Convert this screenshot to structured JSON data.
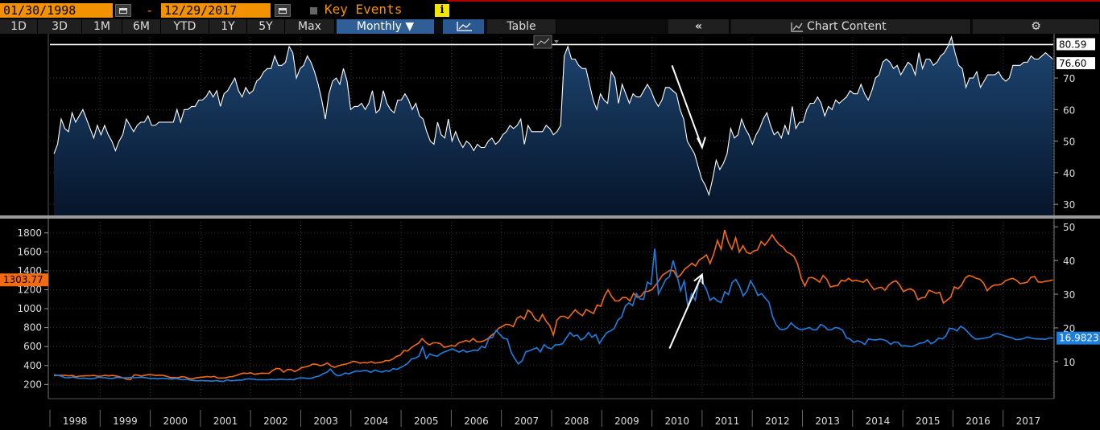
{
  "header": {
    "start_date": "01/30/1998",
    "dash": "-",
    "end_date": "12/29/2017",
    "key_events_label": "Key Events",
    "info_glyph": "i"
  },
  "toolbar": {
    "periods": [
      "1D",
      "3D",
      "1M",
      "6M",
      "YTD",
      "1Y",
      "5Y",
      "Max"
    ],
    "frequency_label": "Monthly ▼",
    "table_label": "Table",
    "collapse_glyph": "«",
    "chart_content_label": "Chart Content",
    "settings_glyph": "⚙"
  },
  "colors": {
    "index_line": "#ffffff",
    "index_fill_top": "#1e4672",
    "index_fill_bottom": "#06152a",
    "gold": "#f26a12",
    "silver": "#1e7fe0",
    "top_ref_line": "#ffffff",
    "arrow": "#ffffff"
  },
  "chart_data": [
    {
      "type": "area",
      "panel": "upper",
      "x_start": 1998.08,
      "x_end": 2017.99,
      "ylim": [
        28,
        83
      ],
      "yticks": [
        30,
        40,
        50,
        60,
        70
      ],
      "reference_line": 80.59,
      "labels": {
        "ref": "80.59",
        "last": "76.60"
      },
      "last_value": 76.6,
      "annotation": "arrow pointing down toward the 2011 low",
      "values": [
        46,
        49,
        57,
        54,
        53,
        59,
        56,
        58,
        60,
        57,
        54,
        51,
        55,
        52,
        55,
        52,
        50,
        47,
        50,
        52,
        57,
        55,
        53,
        55,
        56,
        56,
        58,
        55,
        55,
        56,
        56,
        56,
        56,
        56,
        60,
        56,
        60,
        60,
        61,
        61,
        63,
        63,
        64,
        66,
        64,
        66,
        61,
        65,
        66,
        68,
        70,
        66,
        64,
        67,
        65,
        66,
        69,
        70,
        72,
        73,
        73,
        77,
        74,
        74,
        75,
        80,
        78,
        70,
        73,
        74,
        77,
        75,
        72,
        68,
        63,
        57,
        65,
        69,
        70,
        68,
        73,
        69,
        60,
        61,
        61,
        62,
        60,
        62,
        66,
        59,
        60,
        66,
        62,
        60,
        59,
        63,
        63,
        65,
        63,
        60,
        62,
        58,
        57,
        53,
        50,
        49,
        56,
        52,
        51,
        57,
        50,
        53,
        50,
        48,
        50,
        49,
        47,
        49,
        48,
        48,
        50,
        51,
        49,
        50,
        52,
        53,
        55,
        54,
        55,
        57,
        49,
        55,
        53,
        53,
        53,
        53,
        55,
        54,
        52,
        53,
        55,
        77,
        80,
        76,
        76,
        74,
        73,
        73,
        68,
        63,
        60,
        65,
        63,
        62,
        72,
        70,
        62,
        68,
        65,
        62,
        65,
        64,
        64,
        66,
        68,
        66,
        63,
        61,
        63,
        67,
        67,
        66,
        65,
        60,
        57,
        50,
        48,
        46,
        42,
        38,
        36,
        33,
        38,
        44,
        41,
        43,
        46,
        54,
        51,
        52,
        57,
        54,
        52,
        49,
        52,
        54,
        57,
        59,
        55,
        52,
        53,
        51,
        55,
        52,
        61,
        54,
        56,
        56,
        60,
        62,
        62,
        64,
        62,
        58,
        61,
        60,
        63,
        62,
        63,
        64,
        66,
        65,
        65,
        68,
        65,
        63,
        66,
        70,
        71,
        75,
        76,
        75,
        73,
        74,
        71,
        73,
        75,
        74,
        71,
        78,
        73,
        76,
        76,
        74,
        75,
        77,
        78,
        80,
        83,
        78,
        74,
        73,
        67,
        70,
        70,
        72,
        67,
        69,
        71,
        71,
        71,
        72,
        70,
        69,
        70,
        74,
        74,
        74,
        75,
        75,
        77,
        76,
        76,
        77,
        78,
        77,
        76
      ]
    },
    {
      "type": "line",
      "panel": "lower",
      "x_start": 1998.08,
      "x_end": 2017.99,
      "x_tick_labels": [
        "1998",
        "1999",
        "2000",
        "2001",
        "2002",
        "2003",
        "2004",
        "2005",
        "2006",
        "2007",
        "2008",
        "2009",
        "2010",
        "2011",
        "2012",
        "2013",
        "2014",
        "2015",
        "2016",
        "2017"
      ],
      "y_left": {
        "ylim": [
          50,
          1900
        ],
        "ticks": [
          200,
          400,
          600,
          800,
          1000,
          1200,
          1400,
          1600,
          1800
        ]
      },
      "y_right": {
        "ylim": [
          -1,
          51
        ],
        "ticks": [
          10,
          20,
          30,
          40,
          50
        ]
      },
      "annotation": "arrow pointing up toward the 2011 peak",
      "series": [
        {
          "name": "gold",
          "axis": "left",
          "last_label": "1303.77",
          "values": [
            302,
            295,
            297,
            297,
            290,
            295,
            280,
            288,
            290,
            293,
            292,
            295,
            287,
            288,
            296,
            290,
            295,
            289,
            281,
            268,
            255,
            252,
            300,
            299,
            288,
            298,
            305,
            301,
            294,
            298,
            295,
            285,
            272,
            272,
            270,
            282,
            278,
            263,
            259,
            269,
            274,
            278,
            283,
            279,
            285,
            266,
            268,
            269,
            279,
            283,
            295,
            310,
            320,
            316,
            323,
            307,
            314,
            319,
            317,
            318,
            348,
            368,
            365,
            329,
            356,
            358,
            335,
            354,
            378,
            385,
            395,
            415,
            412,
            398,
            407,
            427,
            395,
            381,
            397,
            408,
            414,
            425,
            445,
            438,
            424,
            433,
            427,
            440,
            425,
            430,
            435,
            452,
            451,
            469,
            497,
            509,
            558,
            552,
            587,
            614,
            635,
            685,
            644,
            618,
            640,
            640,
            631,
            593,
            599,
            612,
            603,
            638,
            649,
            664,
            652,
            686,
            651,
            650,
            662,
            683,
            718,
            747,
            794,
            812,
            836,
            831,
            810,
            898,
            921,
            889,
            984,
            956,
            889,
            866,
            939,
            869,
            822,
            720,
            881,
            918,
            920,
            896,
            943,
            988,
            950,
            926,
            991,
            970,
            949,
            1039,
            1025,
            1133,
            1199,
            1128,
            1082,
            1083,
            1118,
            1117,
            1082,
            1162,
            1119,
            1131,
            1181,
            1183,
            1200,
            1244,
            1300,
            1357,
            1381,
            1406,
            1400,
            1327,
            1360,
            1418,
            1446,
            1480,
            1452,
            1514,
            1538,
            1569,
            1477,
            1581,
            1720,
            1627,
            1830,
            1700,
            1627,
            1750,
            1597,
            1664,
            1595,
            1580,
            1610,
            1620,
            1710,
            1670,
            1720,
            1780,
            1720,
            1675,
            1650,
            1600,
            1580,
            1550,
            1470,
            1320,
            1240,
            1325,
            1330,
            1310,
            1280,
            1350,
            1310,
            1230,
            1240,
            1245,
            1300,
            1290,
            1320,
            1290,
            1300,
            1290,
            1280,
            1310,
            1250,
            1200,
            1220,
            1225,
            1195,
            1250,
            1280,
            1295,
            1250,
            1180,
            1200,
            1210,
            1185,
            1095,
            1115,
            1120,
            1195,
            1180,
            1162,
            1173,
            1060,
            1090,
            1120,
            1230,
            1210,
            1250,
            1325,
            1350,
            1340,
            1320,
            1310,
            1270,
            1190,
            1230,
            1250,
            1250,
            1260,
            1294,
            1310,
            1320,
            1300,
            1265,
            1270,
            1280,
            1330,
            1340,
            1282,
            1280,
            1290,
            1293,
            1304
          ]
        },
        {
          "name": "silver",
          "axis": "right",
          "last_label": "16.9823",
          "values": [
            5.8,
            5.9,
            5.7,
            5.2,
            5.2,
            5.4,
            5.2,
            5.0,
            5.1,
            5.0,
            4.9,
            5.0,
            5.4,
            5.2,
            5.2,
            5.0,
            5.0,
            5.3,
            5.2,
            5.2,
            5.2,
            5.3,
            5.2,
            5.3,
            5.3,
            5.2,
            5.0,
            5.0,
            4.9,
            5.0,
            5.0,
            4.9,
            4.8,
            5.0,
            4.8,
            4.6,
            4.8,
            4.5,
            4.4,
            4.3,
            4.4,
            4.3,
            4.3,
            4.2,
            4.4,
            4.2,
            4.1,
            4.6,
            4.3,
            4.4,
            4.5,
            4.5,
            4.8,
            4.9,
            4.8,
            4.6,
            4.6,
            4.6,
            4.6,
            4.7,
            4.6,
            4.7,
            4.8,
            4.6,
            4.7,
            4.6,
            5.0,
            5.2,
            5.1,
            5.0,
            5.1,
            5.5,
            5.7,
            6.4,
            6.8,
            7.8,
            6.5,
            5.8,
            6.0,
            6.6,
            6.4,
            6.8,
            7.2,
            7.1,
            7.3,
            7.3,
            6.8,
            7.5,
            7.1,
            6.9,
            7.3,
            7.1,
            7.9,
            7.7,
            8.2,
            8.8,
            9.5,
            10.8,
            11.0,
            11.6,
            14.3,
            10.9,
            12.3,
            11.8,
            11.6,
            12.4,
            12.9,
            13.3,
            13.8,
            13.3,
            12.8,
            13.4,
            12.8,
            13.1,
            13.4,
            13.3,
            14.5,
            14.1,
            16.9,
            17.2,
            19.3,
            18.0,
            16.9,
            16.7,
            12.9,
            10.9,
            9.3,
            10.2,
            12.9,
            13.2,
            13.7,
            14.1,
            12.9,
            15.0,
            14.1,
            13.8,
            15.0,
            15.0,
            15.3,
            17.0,
            18.6,
            17.5,
            17.9,
            16.4,
            17.1,
            18.6,
            17.2,
            18.0,
            15.4,
            17.1,
            18.6,
            19.1,
            19.8,
            22.3,
            23.2,
            26.4,
            27.4,
            26.6,
            30.2,
            28.6,
            28.5,
            33.6,
            32.9,
            43.5,
            30.0,
            32.2,
            34.4,
            35.2,
            40.0,
            35.8,
            31.0,
            33.9,
            26.4,
            30.1,
            28.2,
            34.1,
            33.4,
            31.5,
            28.2,
            29.0,
            28.0,
            27.5,
            30.7,
            29.9,
            33.5,
            34.4,
            32.4,
            29.5,
            30.9,
            34.0,
            32.1,
            29.6,
            30.2,
            28.8,
            27.6,
            23.3,
            20.8,
            19.6,
            19.5,
            20.0,
            21.5,
            20.4,
            19.7,
            19.4,
            19.8,
            20.1,
            19.4,
            19.5,
            21.0,
            20.5,
            19.4,
            19.5,
            20.1,
            19.9,
            19.3,
            17.0,
            16.7,
            15.7,
            16.2,
            15.8,
            15.1,
            16.7,
            16.5,
            16.4,
            16.7,
            16.5,
            16.1,
            15.1,
            15.8,
            15.7,
            14.6,
            14.7,
            14.5,
            14.5,
            15.0,
            15.5,
            15.6,
            16.4,
            15.3,
            15.9,
            17.0,
            16.7,
            17.6,
            19.9,
            19.7,
            19.1,
            20.5,
            19.8,
            18.7,
            17.5,
            16.7,
            16.7,
            16.9,
            17.1,
            17.3,
            18.1,
            18.3,
            18.0,
            17.6,
            17.3,
            17.0,
            16.5,
            16.6,
            16.8,
            17.3,
            17.0,
            16.8,
            16.7,
            16.7,
            16.6,
            17.0,
            16.98
          ]
        }
      ]
    }
  ]
}
